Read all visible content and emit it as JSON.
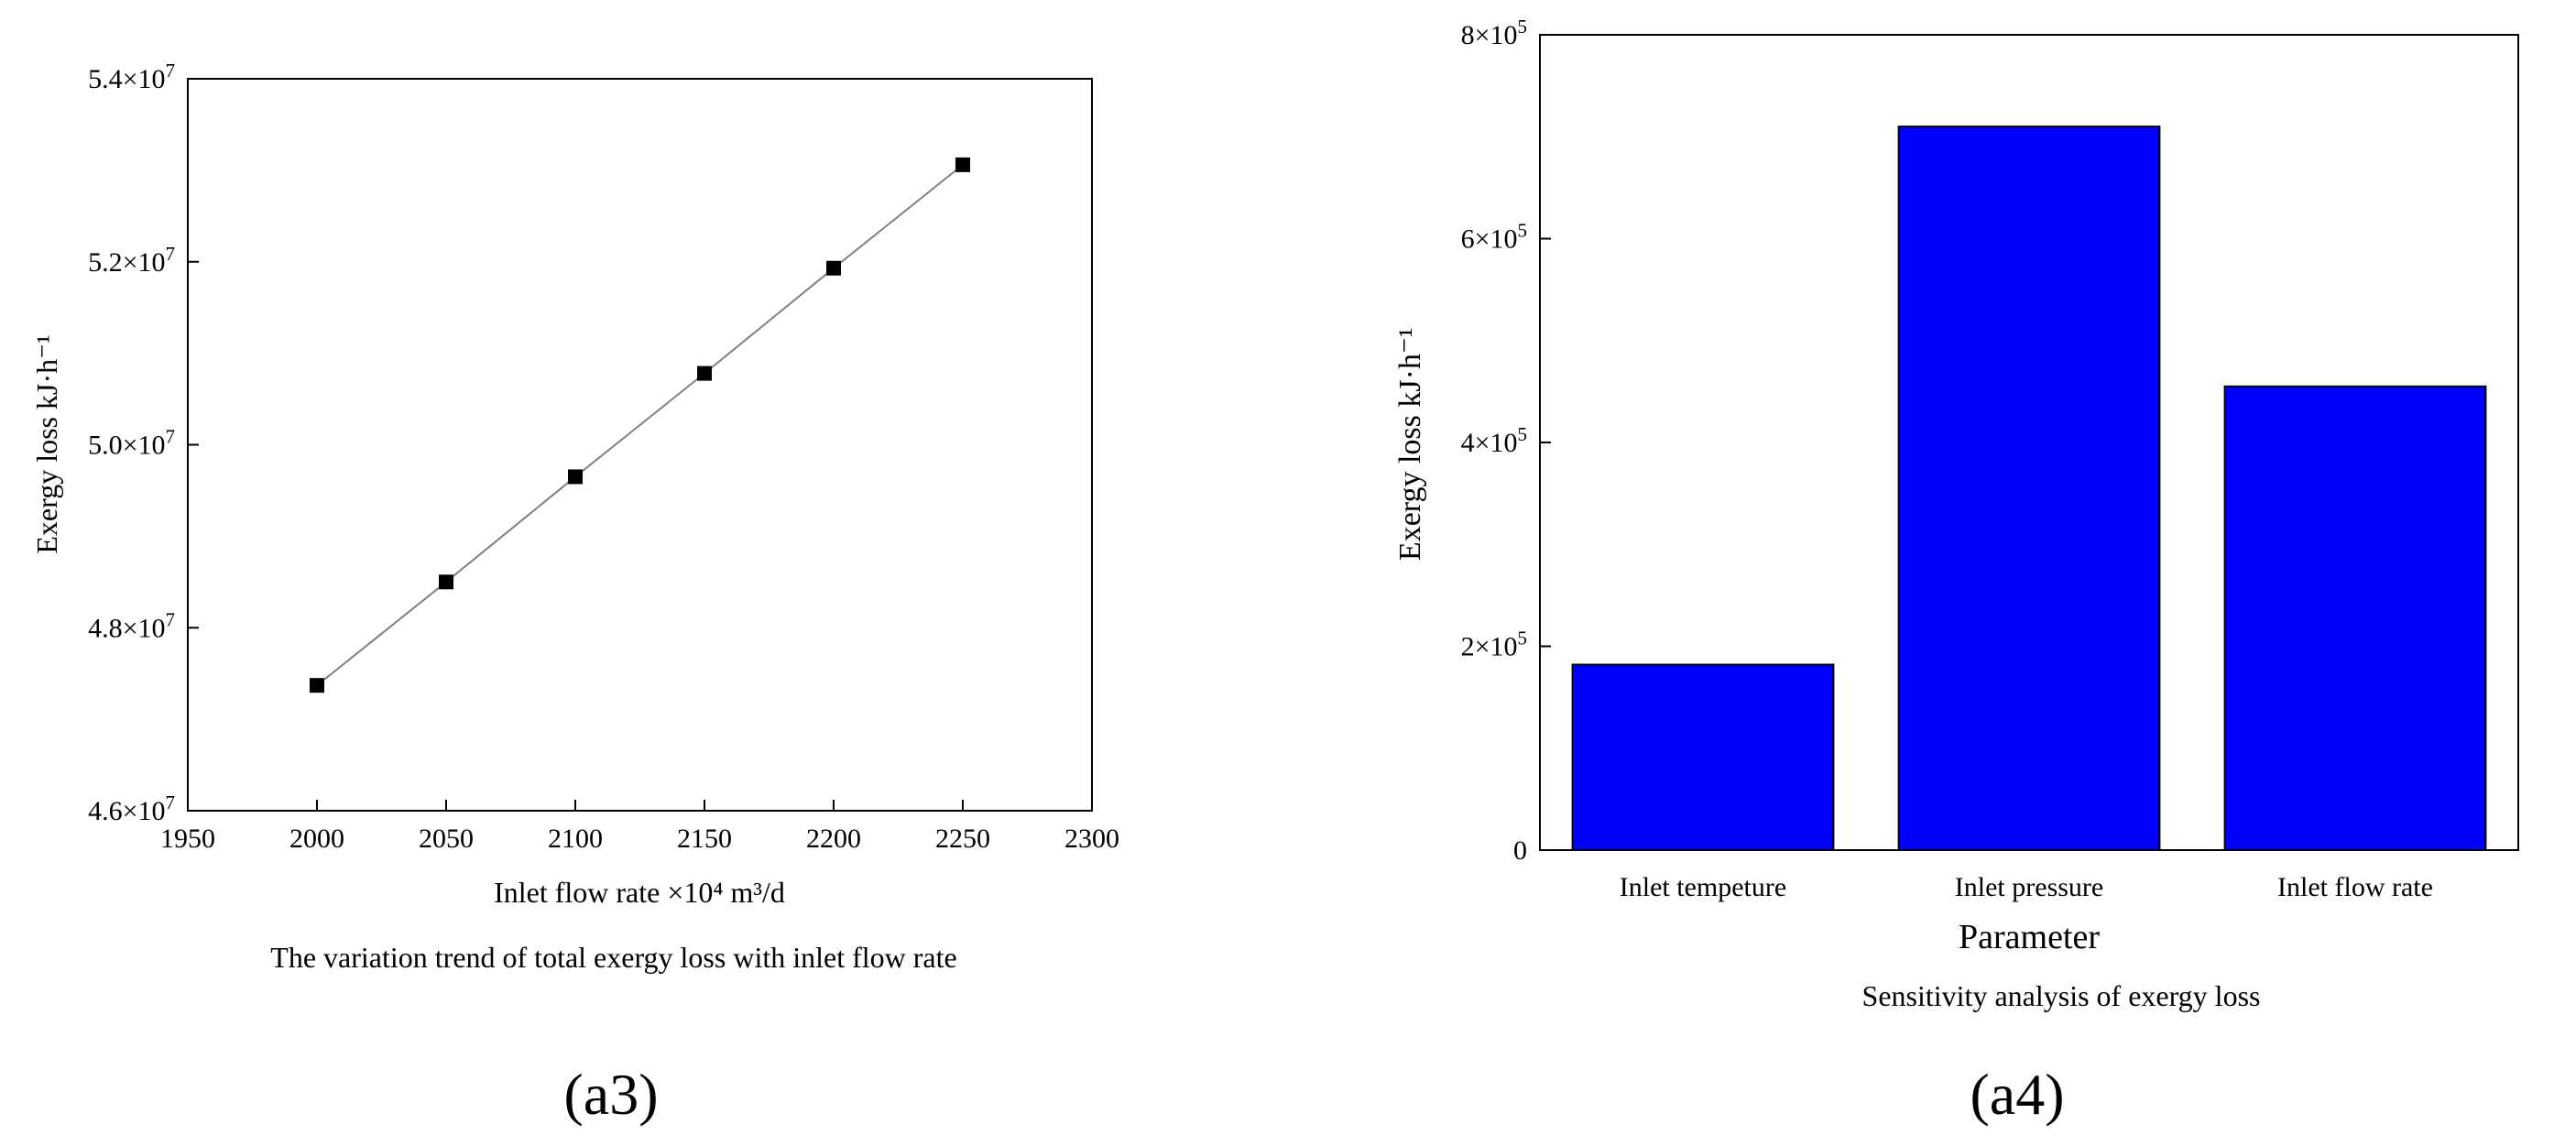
{
  "chart_data": [
    {
      "type": "line",
      "panel_label": "(a3)",
      "caption": "The variation trend of total exergy loss with inlet flow rate",
      "xlabel": "Inlet flow rate ×10⁴ m³/d",
      "ylabel": "Exergy loss kJ·h⁻¹",
      "xlim": [
        1950,
        2300
      ],
      "ylim": [
        46000000,
        54000000
      ],
      "x_ticks": [
        1950,
        2000,
        2050,
        2100,
        2150,
        2200,
        2250,
        2300
      ],
      "x_tick_labels": [
        "1950",
        "2000",
        "2050",
        "2100",
        "2150",
        "2200",
        "2250",
        "2300"
      ],
      "y_ticks": [
        46000000,
        48000000,
        50000000,
        52000000,
        54000000
      ],
      "y_tick_labels": [
        {
          "mantissa": "4.6×10",
          "exp": "7"
        },
        {
          "mantissa": "4.8×10",
          "exp": "7"
        },
        {
          "mantissa": "5.0×10",
          "exp": "7"
        },
        {
          "mantissa": "5.2×10",
          "exp": "7"
        },
        {
          "mantissa": "5.4×10",
          "exp": "7"
        }
      ],
      "grid": false,
      "series": [
        {
          "x": [
            2000,
            2050,
            2100,
            2150,
            2200,
            2250
          ],
          "y": [
            47370000,
            48500000,
            49650000,
            50780000,
            51930000,
            53060000
          ],
          "marker": "square",
          "line_color": "#808080",
          "marker_color": "#000000"
        }
      ]
    },
    {
      "type": "bar",
      "panel_label": "(a4)",
      "caption": "Sensitivity analysis of exergy loss",
      "xlabel": "Parameter",
      "ylabel": "Exergy loss kJ·h⁻¹",
      "categories": [
        "Inlet tempeture",
        "Inlet pressure",
        "Inlet flow rate"
      ],
      "values": [
        182000,
        710000,
        455000
      ],
      "ylim": [
        0,
        800000
      ],
      "y_ticks": [
        0,
        200000,
        400000,
        600000,
        800000
      ],
      "y_tick_labels": [
        {
          "mantissa": "0",
          "exp": ""
        },
        {
          "mantissa": "2×10",
          "exp": "5"
        },
        {
          "mantissa": "4×10",
          "exp": "5"
        },
        {
          "mantissa": "6×10",
          "exp": "5"
        },
        {
          "mantissa": "8×10",
          "exp": "5"
        }
      ],
      "grid": false,
      "bar_color": "#0000FF"
    }
  ]
}
